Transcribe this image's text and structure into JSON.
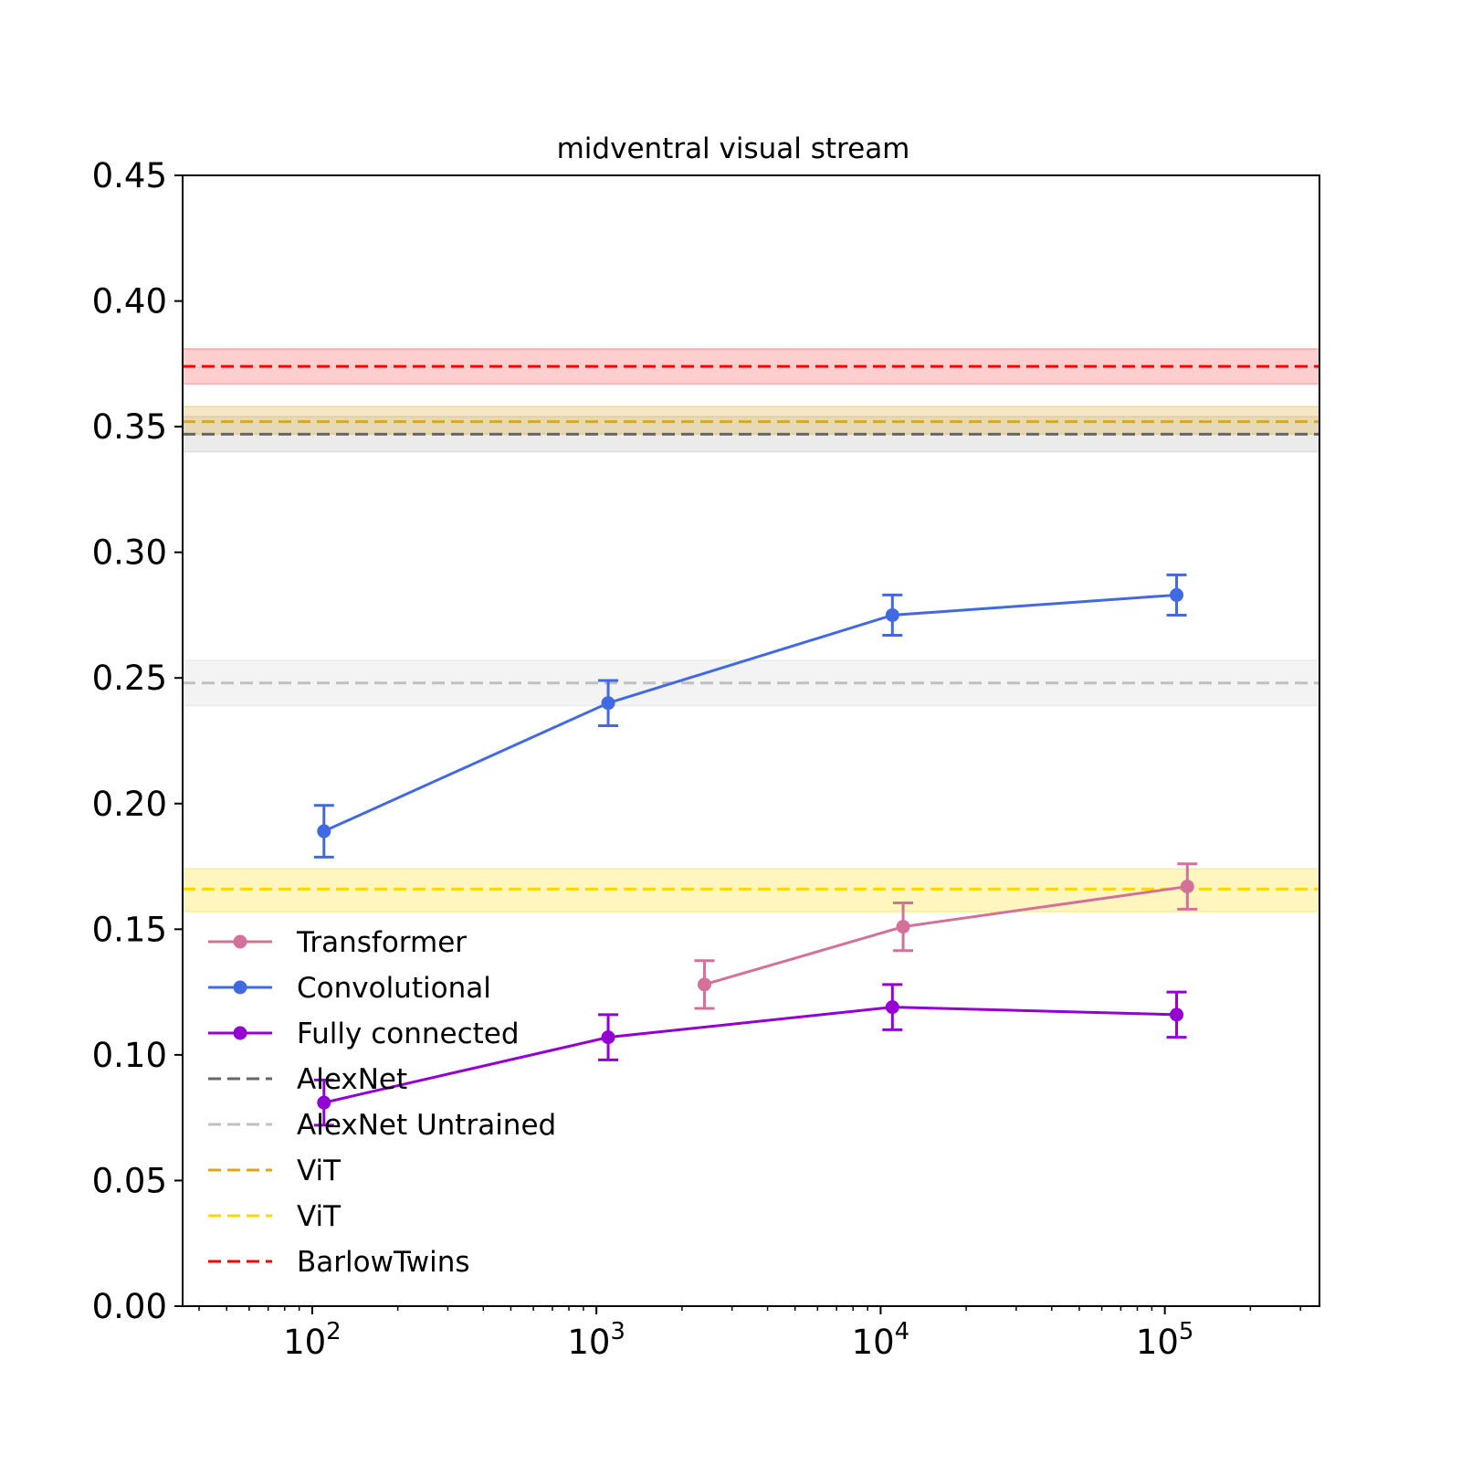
{
  "chart_data": {
    "type": "line",
    "title": "midventral visual stream",
    "xlabel": "",
    "ylabel": "",
    "xscale": "log",
    "xlim": [
      35,
      350000
    ],
    "ylim": [
      0,
      0.45
    ],
    "grid": false,
    "legend_placement": "lower-left",
    "y_ticks": [
      "0.00",
      "0.05",
      "0.10",
      "0.15",
      "0.20",
      "0.25",
      "0.30",
      "0.35",
      "0.40",
      "0.45"
    ],
    "y_tick_values": [
      0,
      0.05,
      0.1,
      0.15,
      0.2,
      0.25,
      0.3,
      0.35,
      0.4,
      0.45
    ],
    "x_ticks": [
      {
        "value": 100,
        "base": "10",
        "exp": "2"
      },
      {
        "value": 1000,
        "base": "10",
        "exp": "3"
      },
      {
        "value": 10000,
        "base": "10",
        "exp": "4"
      },
      {
        "value": 100000,
        "base": "10",
        "exp": "5"
      }
    ],
    "series": [
      {
        "name": "Transformer",
        "color": "#d4719a",
        "x": [
          2400,
          12000,
          120000
        ],
        "y": [
          0.128,
          0.151,
          0.167
        ],
        "err": [
          0.0095,
          0.0095,
          0.009
        ]
      },
      {
        "name": "Convolutional",
        "color": "#4169e1",
        "x": [
          110,
          1100,
          11000,
          110000
        ],
        "y": [
          0.189,
          0.24,
          0.275,
          0.283
        ],
        "err": [
          0.0103,
          0.009,
          0.008,
          0.008
        ]
      },
      {
        "name": "Fully connected",
        "color": "#9400d3",
        "x": [
          110,
          1100,
          11000,
          110000
        ],
        "y": [
          0.081,
          0.107,
          0.119,
          0.116
        ],
        "err": [
          0.009,
          0.009,
          0.009,
          0.009
        ]
      }
    ],
    "reference_lines": [
      {
        "name": "AlexNet",
        "color": "#666666",
        "band_color": "#b0b0b0",
        "value": 0.347,
        "band": [
          0.34,
          0.354
        ]
      },
      {
        "name": "AlexNet Untrained",
        "color": "#c0c0c0",
        "band_color": "#d0d0d0",
        "value": 0.248,
        "band": [
          0.239,
          0.257
        ]
      },
      {
        "name": "ViT",
        "color": "#daa520",
        "band_color": "#daa520",
        "value": 0.352,
        "band": [
          0.347,
          0.358
        ]
      },
      {
        "name": "ViT",
        "color": "#ffd700",
        "band_color": "#ffd700",
        "value": 0.166,
        "band": [
          0.157,
          0.174
        ]
      },
      {
        "name": "BarlowTwins",
        "color": "#ff0000",
        "band_color": "#ff4040",
        "value": 0.374,
        "band": [
          0.367,
          0.381
        ]
      }
    ]
  }
}
